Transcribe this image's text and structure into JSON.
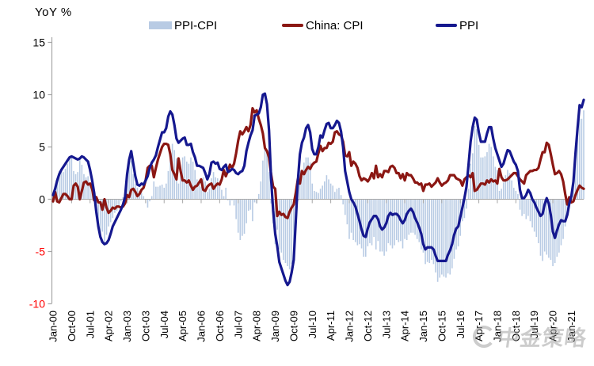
{
  "title": "YoY %",
  "legend": [
    {
      "label": "PPI-CPI",
      "type": "bar"
    },
    {
      "label": "China: CPI",
      "type": "line"
    },
    {
      "label": "PPI",
      "type": "line"
    }
  ],
  "watermark": {
    "text": "中金策略"
  },
  "colors": {
    "bar": "#b8cbe4",
    "cpi_line": "#8b1713",
    "ppi_line": "#15188f",
    "axis": "#a6a6a6",
    "tick_label": "#000000",
    "negative_tick_label": "#ff0000"
  },
  "chart_data": {
    "type": "bar",
    "subtype": "combo-bar-plus-two-lines",
    "title": "YoY %",
    "xlabel": "",
    "ylabel": "YoY %",
    "ylim": [
      -10,
      15
    ],
    "y_ticks": [
      15,
      10,
      5,
      0,
      -5,
      -10
    ],
    "grid": false,
    "legend_position": "top",
    "x_unit": "month",
    "x_start": "Jan-00",
    "x_end": "Jul-21",
    "x_tick_step_months": 9,
    "x_tick_labels": [
      "Jan-00",
      "Oct-00",
      "Jul-01",
      "Apr-02",
      "Jan-03",
      "Oct-03",
      "Jul-04",
      "Apr-05",
      "Jan-06",
      "Oct-06",
      "Jul-07",
      "Apr-08",
      "Jan-09",
      "Oct-09",
      "Jul-10",
      "Apr-11",
      "Jan-12",
      "Oct-12",
      "Jul-13",
      "Apr-14",
      "Jan-15",
      "Oct-15",
      "Jul-16",
      "Apr-17",
      "Jan-18",
      "Oct-18",
      "Jul-19",
      "Apr-20",
      "Jan-21"
    ],
    "bar_series": {
      "name": "PPI-CPI",
      "definition": "PPI minus China: CPI, computed from the two line series"
    },
    "series": [
      {
        "name": "China: CPI",
        "values": [
          -0.2,
          0.7,
          -0.2,
          -0.3,
          0.1,
          0.5,
          0.5,
          0.3,
          0,
          0,
          1.3,
          1.5,
          1.2,
          0,
          0.8,
          1.6,
          1.7,
          1.4,
          1.5,
          1,
          -0.1,
          0.2,
          -0.3,
          -0.3,
          -1,
          0,
          -0.8,
          -1.3,
          -1.1,
          -0.8,
          -0.9,
          -0.7,
          -0.7,
          -0.8,
          -0.7,
          -0.4,
          0.4,
          0.2,
          0.9,
          1,
          0.7,
          0.3,
          0.5,
          0.9,
          1.1,
          1.8,
          3,
          3.2,
          3.2,
          2.1,
          3,
          3.8,
          4.4,
          5,
          5.3,
          5.3,
          5.2,
          4.3,
          2.8,
          2.4,
          1.9,
          3.9,
          2.7,
          1.8,
          1.8,
          1.6,
          1.8,
          1.3,
          0.9,
          1.2,
          1.3,
          1.6,
          1.9,
          0.9,
          0.8,
          1.2,
          1.4,
          1.5,
          1,
          1.3,
          1.5,
          1.4,
          1.9,
          2.8,
          2.2,
          2.7,
          3.3,
          3,
          3.4,
          4.4,
          5.6,
          6.5,
          6.2,
          6.5,
          6.9,
          6.5,
          7.1,
          8.7,
          8.3,
          8.5,
          7.7,
          7.1,
          6.3,
          4.9,
          4.6,
          4,
          2.4,
          1.2,
          1,
          -1.6,
          -1.2,
          -1.5,
          -1.4,
          -1.7,
          -1.8,
          -1.2,
          -0.8,
          -0.5,
          0.6,
          1.9,
          1.5,
          2.7,
          2.4,
          2.8,
          3.1,
          2.9,
          3.3,
          3.5,
          3.6,
          4.4,
          5.1,
          4.6,
          4.9,
          4.9,
          5.4,
          5.3,
          5.5,
          6.4,
          6.5,
          6.2,
          6.1,
          5.5,
          4.2,
          4.1,
          4.5,
          3.2,
          3.6,
          3.4,
          3,
          2.2,
          1.8,
          2,
          1.9,
          1.7,
          2,
          2.5,
          2,
          3.2,
          2.1,
          2.4,
          2.1,
          2.7,
          2.7,
          2.6,
          3.1,
          3.2,
          3,
          2.5,
          2.5,
          2,
          2.4,
          1.8,
          2.5,
          2.3,
          2.3,
          2,
          1.6,
          1.6,
          1.4,
          1.5,
          0.8,
          1.4,
          1.4,
          1.5,
          1.2,
          1.4,
          1.6,
          2,
          1.6,
          1.3,
          1.5,
          1.6,
          1.8,
          2.3,
          2.3,
          2.3,
          2,
          1.9,
          1.8,
          1.3,
          1.9,
          2.1,
          2.3,
          2.1,
          2.5,
          0.8,
          0.9,
          1.2,
          1.5,
          1.5,
          1.4,
          1.8,
          1.6,
          1.9,
          1.7,
          1.8,
          1.5,
          2.9,
          2.1,
          1.8,
          1.8,
          1.9,
          2.1,
          2.3,
          2.5,
          2.5,
          2.2,
          1.9,
          1.7,
          1.5,
          2.3,
          2.5,
          2.7,
          2.7,
          2.8,
          2.8,
          3,
          3.8,
          4.5,
          4.5,
          5.4,
          5.2,
          4.3,
          3.3,
          2.4,
          2.5,
          2.7,
          2.4,
          1.7,
          0.5,
          -0.5,
          0.2,
          -0.3,
          -0.2,
          0.4,
          0.9,
          1.3,
          1.1,
          1
        ]
      },
      {
        "name": "PPI",
        "values": [
          0.4,
          1,
          1.8,
          2.4,
          2.8,
          3.1,
          3.4,
          3.7,
          4,
          4.1,
          4,
          3.9,
          3.8,
          3.9,
          4.1,
          4,
          3.8,
          3.6,
          2.8,
          1.8,
          0.6,
          -1.2,
          -2.6,
          -3.6,
          -4.1,
          -4.3,
          -4.2,
          -3.9,
          -3.3,
          -2.6,
          -2.2,
          -1.8,
          -1.4,
          -1,
          -0.5,
          0.2,
          2.4,
          3.8,
          4.6,
          3.4,
          2.2,
          1.4,
          1.3,
          1.5,
          1.4,
          1.8,
          2.2,
          3,
          3.5,
          3.8,
          4.2,
          5,
          5.7,
          6.4,
          6.4,
          6.8,
          7.9,
          8.4,
          8.1,
          7.1,
          5.8,
          5.4,
          5.6,
          5.8,
          5.9,
          5.2,
          5.2,
          5.3,
          4.5,
          4,
          3.2,
          3.2,
          3.1,
          3,
          2.5,
          1.9,
          2.4,
          3.5,
          3.6,
          3.4,
          3.5,
          2.9,
          2.8,
          3.1,
          3.3,
          2.6,
          2.7,
          2.9,
          2.8,
          2.5,
          2.4,
          2.6,
          2.7,
          3.2,
          4.6,
          5.4,
          6.1,
          6.6,
          8,
          8.1,
          8.2,
          8.8,
          10,
          10.1,
          9.1,
          6.6,
          2,
          -1.1,
          -3.3,
          -4.5,
          -6,
          -6.6,
          -7.2,
          -7.8,
          -8.2,
          -7.9,
          -7,
          -5.8,
          -2.1,
          1.7,
          4.3,
          5.4,
          5.9,
          6.8,
          7.1,
          6.4,
          4.8,
          4.3,
          4.3,
          5,
          6.1,
          5.9,
          6.6,
          7.2,
          7.3,
          6.8,
          6.8,
          7.1,
          7.5,
          7.3,
          6.5,
          5,
          2.7,
          1.7,
          0.7,
          0,
          -0.3,
          -0.7,
          -1.4,
          -2.1,
          -2.9,
          -3.5,
          -3.6,
          -2.8,
          -2.2,
          -1.9,
          -1.6,
          -1.6,
          -1.9,
          -2.6,
          -2.9,
          -2.7,
          -2.3,
          -1.6,
          -1.3,
          -1.5,
          -1.4,
          -1.4,
          -1.6,
          -2,
          -2.3,
          -2,
          -1.4,
          -1.1,
          -0.9,
          -1.2,
          -1.8,
          -2.2,
          -2.7,
          -3.3,
          -4.3,
          -4.8,
          -4.6,
          -4.6,
          -4.6,
          -4.8,
          -5.4,
          -5.9,
          -5.9,
          -5.9,
          -5.9,
          -5.9,
          -5.3,
          -4.9,
          -4.3,
          -3.4,
          -2.8,
          -2.6,
          -1.7,
          -0.8,
          0.1,
          1.2,
          3.3,
          5.5,
          6.9,
          7.8,
          7.6,
          6.4,
          5.5,
          5.5,
          5.5,
          6.3,
          6.9,
          6.9,
          5.8,
          4.9,
          4.3,
          3.7,
          3.1,
          3.4,
          4.1,
          4.7,
          4.6,
          4.1,
          3.6,
          3.3,
          2.7,
          0.9,
          0.1,
          0.1,
          0.4,
          0.9,
          0.6,
          0,
          -0.3,
          -0.8,
          -1.2,
          -1.6,
          -1.4,
          -0.5,
          0.1,
          -0.4,
          -1.5,
          -3.1,
          -3.7,
          -3,
          -2.4,
          -2,
          -2.1,
          -2.1,
          -1.5,
          -0.4,
          0.3,
          1.7,
          4.4,
          6.8,
          9,
          8.8,
          9.5
        ]
      }
    ]
  }
}
